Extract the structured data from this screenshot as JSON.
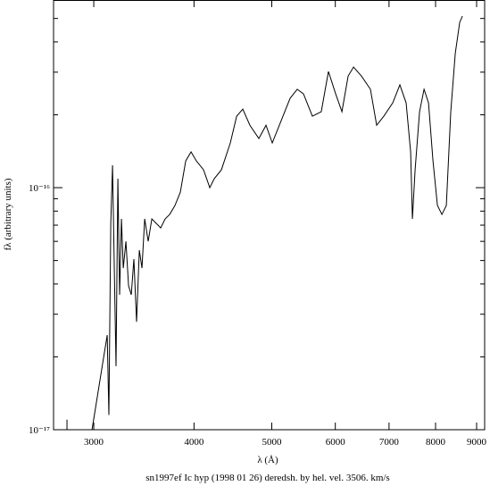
{
  "chart_data": {
    "type": "line",
    "title": "sn1997ef Ic hyp (1998 01 26) deredsh. by hel. vel.  3506. km/s",
    "x_label": "λ (Å)",
    "y_label": "fλ (arbitrary units)",
    "xscale": "log",
    "yscale": "log",
    "xlim": [
      2673,
      9210
    ],
    "ylim": [
      1e-17,
      5.96e-16
    ],
    "xticks": [
      3000,
      4000,
      5000,
      6000,
      7000,
      8000,
      9000
    ],
    "yticks": [
      {
        "value": 1e-17,
        "label": "10⁻¹⁷"
      },
      {
        "value": 1e-16,
        "label": "10⁻¹⁶"
      }
    ],
    "yminorticks": [
      2e-17,
      3e-17,
      4e-17,
      5e-17,
      6e-17,
      7e-17,
      8e-17,
      9e-17,
      2e-16,
      3e-16,
      4e-16,
      5e-16
    ],
    "color": "#000000",
    "x": [
      2778,
      2778,
      2880,
      2985,
      3118,
      3133,
      3150,
      3166,
      3182,
      3198,
      3215,
      3231,
      3248,
      3265,
      3290,
      3315,
      3341,
      3366,
      3392,
      3419,
      3445,
      3472,
      3507,
      3544,
      3589,
      3635,
      3682,
      3730,
      3787,
      3846,
      3906,
      3966,
      4027,
      4111,
      4185,
      4239,
      4327,
      4439,
      4521,
      4601,
      4696,
      4818,
      4918,
      5007,
      5136,
      5270,
      5379,
      5476,
      5618,
      5763,
      5883,
      6006,
      6115,
      6225,
      6322,
      6468,
      6636,
      6756,
      6896,
      7075,
      7221,
      7352,
      7448,
      7486,
      7544,
      7641,
      7740,
      7840,
      7941,
      8043,
      8147,
      8251,
      8357,
      8465,
      8574,
      8641
    ],
    "values": [
      1.1e-17,
      1e-17,
      null,
      1e-17,
      2.46e-17,
      1.15e-17,
      7.12e-17,
      1.237e-16,
      4.65e-17,
      1.83e-17,
      1.089e-16,
      3.61e-17,
      7.43e-17,
      4.65e-17,
      6e-17,
      3.93e-17,
      3.61e-17,
      5.07e-17,
      2.79e-17,
      5.52e-17,
      4.65e-17,
      7.43e-17,
      6e-17,
      7.43e-17,
      7.12e-17,
      6.82e-17,
      7.43e-17,
      7.75e-17,
      8.44e-17,
      9.58e-17,
      1.29e-16,
      1.405e-16,
      1.29e-16,
      1.185e-16,
      1e-16,
      1.089e-16,
      1.185e-16,
      1.53e-16,
      1.974e-16,
      2.11e-16,
      1.81e-16,
      1.596e-16,
      1.81e-16,
      1.53e-16,
      1.89e-16,
      2.34e-16,
      2.55e-16,
      2.44e-16,
      1.974e-16,
      2.06e-16,
      3.02e-16,
      2.44e-16,
      2.06e-16,
      2.89e-16,
      3.15e-16,
      2.89e-16,
      2.55e-16,
      1.81e-16,
      1.974e-16,
      2.24e-16,
      2.66e-16,
      2.24e-16,
      1.405e-16,
      7.43e-17,
      1.185e-16,
      2.06e-16,
      2.55e-16,
      2.24e-16,
      1.29e-16,
      8.44e-17,
      7.75e-17,
      8.44e-17,
      2.06e-16,
      3.58e-16,
      4.82e-16,
      5.11e-16
    ]
  }
}
